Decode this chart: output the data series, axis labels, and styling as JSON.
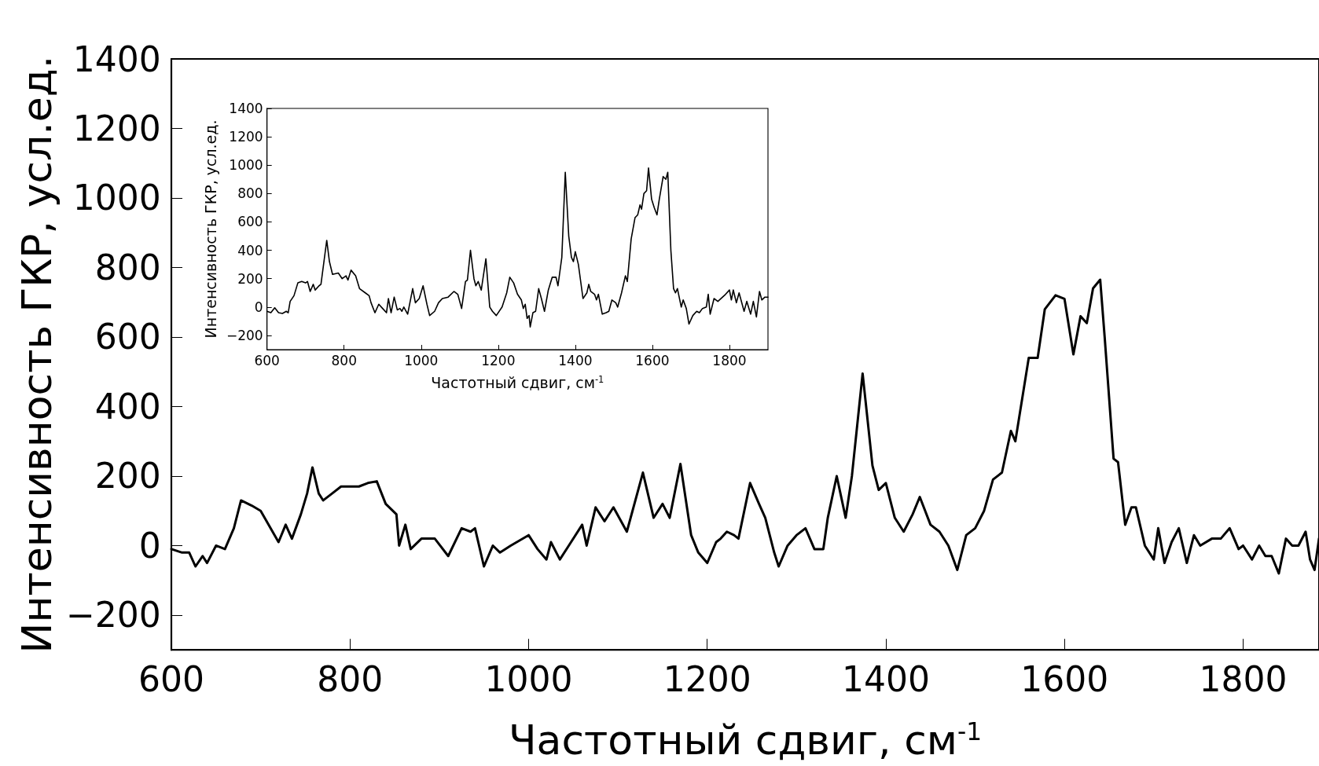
{
  "chart_data": [
    {
      "type": "line",
      "xlabel": "Частотный сдвиг, см$^{-1}$",
      "ylabel": "Интенсивность ГКР, усл.ед.",
      "xlim": [
        600,
        1885
      ],
      "ylim": [
        -300,
        1400
      ],
      "xticks": [
        600,
        800,
        1000,
        1200,
        1400,
        1600,
        1800
      ],
      "yticks": [
        -200,
        0,
        200,
        400,
        600,
        800,
        1000,
        1200,
        1400
      ],
      "grid": false,
      "marker": "none",
      "line_style": "solid",
      "series": [
        {
          "color": "#000000",
          "x": [
            600,
            612,
            620,
            627,
            635,
            640,
            650,
            660,
            670,
            678,
            690,
            700,
            720,
            728,
            735,
            745,
            752,
            758,
            765,
            770,
            780,
            790,
            810,
            820,
            830,
            840,
            852,
            855,
            862,
            868,
            880,
            895,
            910,
            925,
            935,
            940,
            950,
            960,
            968,
            980,
            1000,
            1010,
            1020,
            1025,
            1035,
            1045,
            1060,
            1065,
            1075,
            1085,
            1095,
            1110,
            1128,
            1140,
            1150,
            1158,
            1170,
            1182,
            1190,
            1200,
            1210,
            1215,
            1222,
            1230,
            1235,
            1248,
            1258,
            1265,
            1275,
            1280,
            1290,
            1300,
            1310,
            1320,
            1330,
            1335,
            1345,
            1355,
            1362,
            1374,
            1385,
            1392,
            1400,
            1410,
            1420,
            1430,
            1438,
            1450,
            1460,
            1470,
            1480,
            1490,
            1500,
            1510,
            1520,
            1530,
            1540,
            1545,
            1550,
            1560,
            1570,
            1578,
            1590,
            1600,
            1610,
            1618,
            1625,
            1632,
            1640,
            1645,
            1655,
            1660,
            1668,
            1675,
            1680,
            1690,
            1700,
            1705,
            1712,
            1720,
            1728,
            1737,
            1745,
            1752,
            1765,
            1775,
            1785,
            1795,
            1800,
            1810,
            1818,
            1825,
            1832,
            1840,
            1848,
            1855,
            1862,
            1870,
            1875,
            1880,
            1885
          ],
          "values": [
            -10,
            -20,
            -20,
            -60,
            -30,
            -50,
            0,
            -10,
            50,
            130,
            115,
            100,
            10,
            60,
            20,
            90,
            150,
            225,
            150,
            130,
            150,
            170,
            170,
            180,
            185,
            120,
            90,
            0,
            60,
            -10,
            20,
            20,
            -30,
            50,
            40,
            50,
            -60,
            0,
            -20,
            0,
            30,
            -10,
            -40,
            10,
            -40,
            0,
            60,
            0,
            110,
            70,
            110,
            40,
            210,
            80,
            120,
            80,
            235,
            30,
            -20,
            -50,
            10,
            20,
            40,
            30,
            20,
            180,
            120,
            80,
            -20,
            -60,
            0,
            30,
            50,
            -10,
            -10,
            80,
            200,
            80,
            200,
            495,
            230,
            160,
            180,
            80,
            40,
            90,
            140,
            60,
            40,
            0,
            -70,
            30,
            50,
            100,
            190,
            210,
            330,
            300,
            380,
            540,
            540,
            680,
            720,
            710,
            550,
            660,
            640,
            740,
            765,
            600,
            250,
            240,
            60,
            110,
            110,
            0,
            -40,
            50,
            -50,
            10,
            50,
            -50,
            30,
            0,
            20,
            20,
            50,
            -10,
            0,
            -40,
            0,
            -30,
            -30,
            -80,
            20,
            0,
            0,
            40,
            -40,
            -70,
            20
          ]
        }
      ]
    },
    {
      "type": "line",
      "xlabel": "Частотный сдвиг, см$^{-1}$",
      "ylabel": "Интенсивность ГКР, усл.ед.",
      "xlim": [
        600,
        1900
      ],
      "ylim": [
        -300,
        1400
      ],
      "xticks": [
        600,
        800,
        1000,
        1200,
        1400,
        1600,
        1800
      ],
      "yticks": [
        -200,
        0,
        200,
        400,
        600,
        800,
        1000,
        1200,
        1400
      ],
      "grid": false,
      "marker": "none",
      "line_style": "solid",
      "series": [
        {
          "color": "#000000",
          "x": [
            600,
            610,
            620,
            630,
            640,
            650,
            655,
            660,
            670,
            680,
            690,
            700,
            705,
            712,
            720,
            725,
            735,
            740,
            755,
            762,
            770,
            785,
            795,
            800,
            805,
            810,
            818,
            830,
            840,
            855,
            865,
            870,
            880,
            890,
            900,
            910,
            915,
            922,
            930,
            938,
            945,
            950,
            955,
            965,
            978,
            985,
            995,
            1005,
            1015,
            1022,
            1035,
            1045,
            1055,
            1070,
            1085,
            1095,
            1105,
            1115,
            1120,
            1128,
            1137,
            1142,
            1148,
            1156,
            1168,
            1178,
            1185,
            1195,
            1210,
            1222,
            1230,
            1240,
            1250,
            1260,
            1265,
            1270,
            1275,
            1280,
            1283,
            1290,
            1297,
            1305,
            1312,
            1320,
            1330,
            1340,
            1350,
            1355,
            1365,
            1374,
            1383,
            1390,
            1395,
            1400,
            1408,
            1420,
            1430,
            1435,
            1440,
            1450,
            1455,
            1460,
            1470,
            1480,
            1487,
            1495,
            1505,
            1510,
            1520,
            1530,
            1535,
            1545,
            1555,
            1562,
            1568,
            1572,
            1578,
            1585,
            1590,
            1598,
            1605,
            1612,
            1618,
            1628,
            1635,
            1640,
            1648,
            1655,
            1660,
            1665,
            1675,
            1680,
            1688,
            1695,
            1705,
            1715,
            1722,
            1730,
            1740,
            1745,
            1750,
            1760,
            1770,
            1790,
            1800,
            1805,
            1810,
            1818,
            1825,
            1830,
            1838,
            1845,
            1855,
            1862,
            1870,
            1878,
            1884,
            1892,
            1900
          ],
          "values": [
            -30,
            -40,
            -5,
            -40,
            -45,
            -30,
            -40,
            40,
            80,
            170,
            180,
            170,
            180,
            110,
            160,
            120,
            150,
            160,
            470,
            320,
            230,
            240,
            200,
            210,
            220,
            190,
            260,
            220,
            130,
            100,
            80,
            30,
            -40,
            20,
            -10,
            -40,
            60,
            -40,
            70,
            -20,
            -10,
            -30,
            0,
            -50,
            130,
            30,
            60,
            150,
            20,
            -60,
            -30,
            30,
            60,
            70,
            110,
            90,
            -10,
            180,
            190,
            400,
            200,
            150,
            180,
            120,
            340,
            0,
            -30,
            -60,
            0,
            100,
            210,
            170,
            90,
            50,
            -10,
            20,
            -80,
            -60,
            -140,
            -40,
            -30,
            130,
            60,
            -30,
            120,
            210,
            210,
            150,
            350,
            950,
            500,
            350,
            320,
            390,
            300,
            60,
            100,
            160,
            110,
            90,
            50,
            90,
            -50,
            -40,
            -30,
            50,
            30,
            0,
            100,
            220,
            180,
            480,
            630,
            650,
            720,
            690,
            800,
            820,
            980,
            760,
            700,
            650,
            760,
            920,
            900,
            950,
            400,
            130,
            100,
            130,
            0,
            50,
            -10,
            -120,
            -60,
            -30,
            -40,
            -10,
            0,
            90,
            -50,
            60,
            40,
            90,
            120,
            50,
            120,
            30,
            100,
            50,
            -30,
            40,
            -50,
            40,
            -70,
            110,
            50,
            70,
            70
          ]
        }
      ]
    }
  ]
}
